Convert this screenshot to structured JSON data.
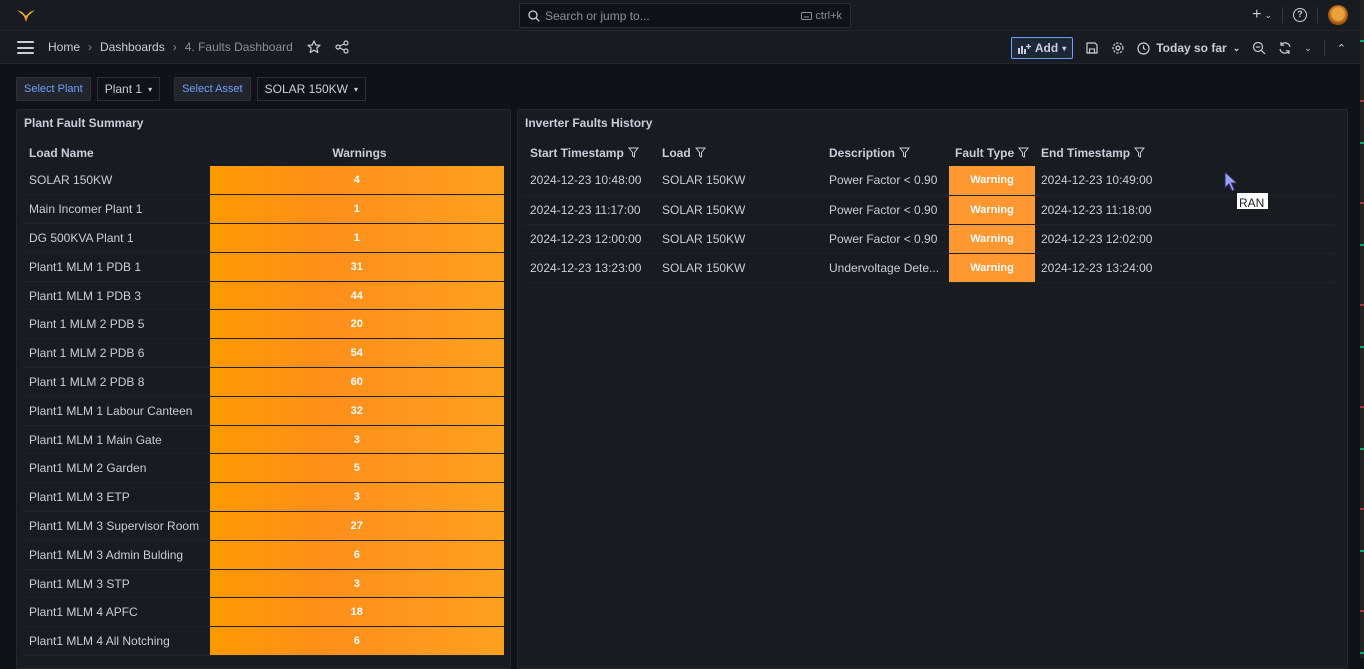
{
  "topbar": {
    "search_placeholder": "Search or jump to...",
    "shortcut": "ctrl+k"
  },
  "navbar": {
    "breadcrumb": [
      "Home",
      "Dashboards",
      "4. Faults Dashboard"
    ],
    "add_label": "Add",
    "time_range": "Today so far"
  },
  "variables": [
    {
      "label": "Select Plant",
      "value": "Plant 1"
    },
    {
      "label": "Select Asset",
      "value": "SOLAR 150KW"
    }
  ],
  "summary_panel": {
    "title": "Plant Fault Summary",
    "headers": [
      "Load Name",
      "Warnings"
    ],
    "rows": [
      {
        "name": "SOLAR 150KW",
        "warnings": "4"
      },
      {
        "name": "Main Incomer Plant 1",
        "warnings": "1"
      },
      {
        "name": "DG 500KVA Plant 1",
        "warnings": "1"
      },
      {
        "name": "Plant1 MLM 1 PDB 1",
        "warnings": "31"
      },
      {
        "name": "Plant1 MLM 1 PDB 3",
        "warnings": "44"
      },
      {
        "name": "Plant 1 MLM 2 PDB 5",
        "warnings": "20"
      },
      {
        "name": "Plant 1 MLM 2 PDB 6",
        "warnings": "54"
      },
      {
        "name": "Plant 1 MLM 2 PDB 8",
        "warnings": "60"
      },
      {
        "name": "Plant1 MLM 1 Labour Canteen",
        "warnings": "32"
      },
      {
        "name": "Plant1 MLM 1 Main Gate",
        "warnings": "3"
      },
      {
        "name": "Plant1 MLM 2 Garden",
        "warnings": "5"
      },
      {
        "name": "Plant1 MLM 3 ETP",
        "warnings": "3"
      },
      {
        "name": "Plant1 MLM 3 Supervisor Room",
        "warnings": "27"
      },
      {
        "name": "Plant1 MLM 3 Admin Bulding",
        "warnings": "6"
      },
      {
        "name": "Plant1 MLM 3 STP",
        "warnings": "3"
      },
      {
        "name": "Plant1 MLM 4 APFC",
        "warnings": "18"
      },
      {
        "name": "Plant1 MLM 4 All Notching",
        "warnings": "6"
      }
    ]
  },
  "history_panel": {
    "title": "Inverter Faults History",
    "headers": [
      "Start Timestamp",
      "Load",
      "Description",
      "Fault Type",
      "End Timestamp"
    ],
    "rows": [
      {
        "start": "2024-12-23 10:48:00",
        "load": "SOLAR 150KW",
        "description": "Power Factor < 0.90",
        "fault_type": "Warning",
        "end": "2024-12-23 10:49:00"
      },
      {
        "start": "2024-12-23 11:17:00",
        "load": "SOLAR 150KW",
        "description": "Power Factor < 0.90",
        "fault_type": "Warning",
        "end": "2024-12-23 11:18:00"
      },
      {
        "start": "2024-12-23 12:00:00",
        "load": "SOLAR 150KW",
        "description": "Power Factor < 0.90",
        "fault_type": "Warning",
        "end": "2024-12-23 12:02:00"
      },
      {
        "start": "2024-12-23 13:23:00",
        "load": "SOLAR 150KW",
        "description": "Undervoltage Dete...",
        "fault_type": "Warning",
        "end": "2024-12-23 13:24:00"
      }
    ]
  },
  "tooltip_text": "RAN",
  "colors": {
    "warning": "#ff9830",
    "accent": "#6e9fff",
    "background": "#111217",
    "panel": "#181b1f"
  }
}
